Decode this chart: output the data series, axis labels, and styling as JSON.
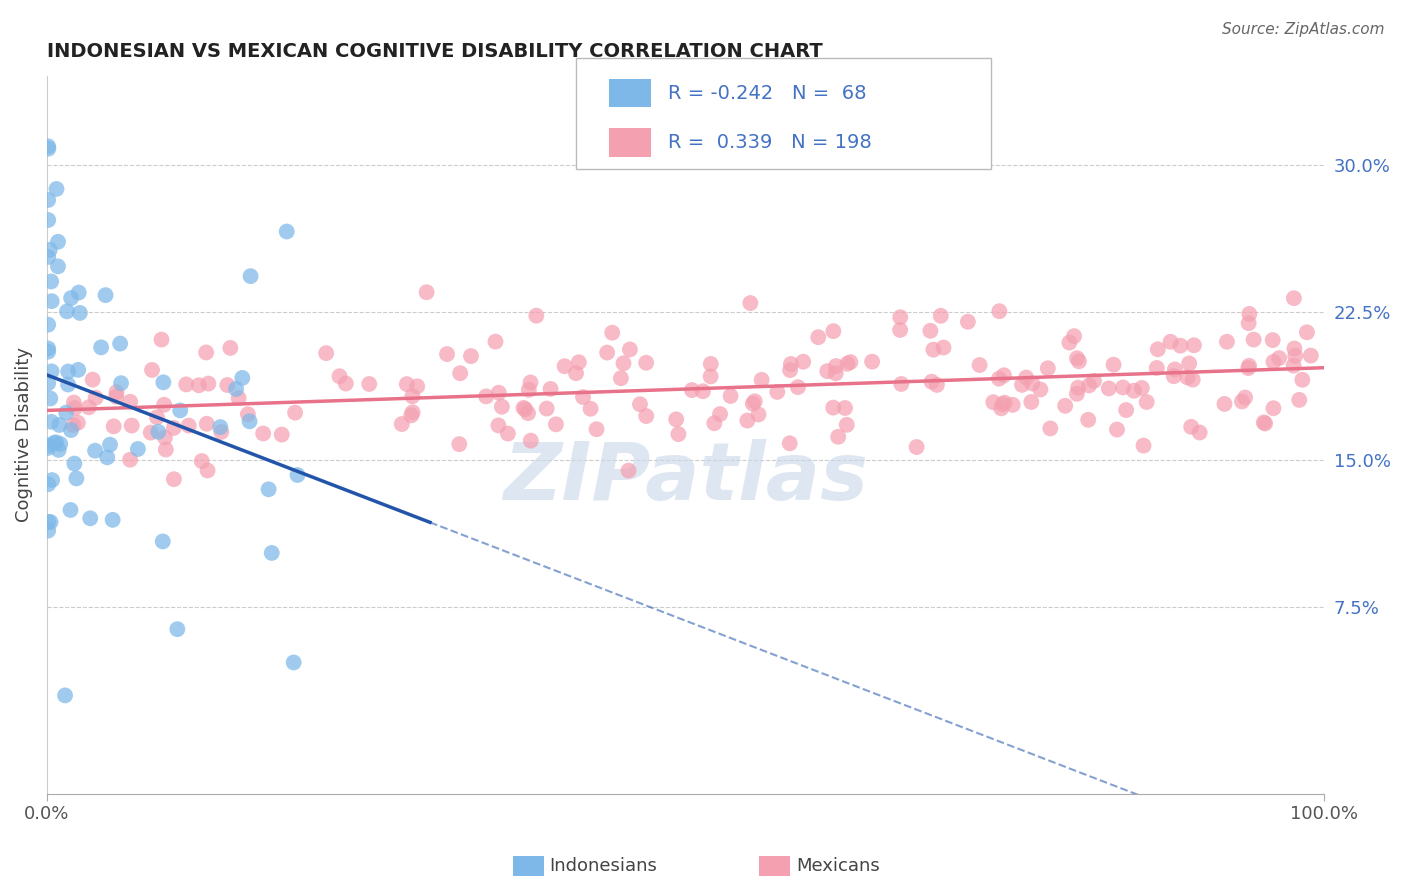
{
  "title": "INDONESIAN VS MEXICAN COGNITIVE DISABILITY CORRELATION CHART",
  "source": "Source: ZipAtlas.com",
  "ylabel": "Cognitive Disability",
  "xlim": [
    0.0,
    1.0
  ],
  "ylim": [
    -0.02,
    0.345
  ],
  "yticks": [
    0.075,
    0.15,
    0.225,
    0.3
  ],
  "ytick_labels": [
    "7.5%",
    "15.0%",
    "22.5%",
    "30.0%"
  ],
  "xticks": [
    0.0,
    1.0
  ],
  "xtick_labels": [
    "0.0%",
    "100.0%"
  ],
  "indonesian_color": "#7db8e8",
  "mexican_color": "#f4a0b0",
  "indonesian_line_color": "#2255aa",
  "mexican_line_color": "#e8728a",
  "indonesian_R": -0.242,
  "indonesian_N": 68,
  "mexican_R": 0.339,
  "mexican_N": 198,
  "watermark": "ZIPatlas",
  "watermark_color": "#c8d8e8",
  "seed": 42
}
